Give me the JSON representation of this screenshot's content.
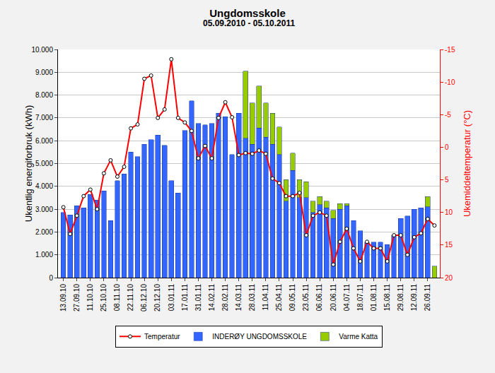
{
  "chart_data": {
    "type": "bar",
    "stacked": true,
    "title": "Ungdomsskole",
    "subtitle": "05.09.2010 - 05.10.2011",
    "y_label": "Ukentlig energiforbruk (kWh)",
    "y2_label": "Ukemiddeltemperatur (°C)",
    "grid": true,
    "legend": "bottom",
    "categories": [
      "13.09.10",
      null,
      "27.09.10",
      null,
      "11.10.10",
      null,
      "25.10.10",
      null,
      "08.11.10",
      null,
      "22.11.10",
      null,
      "06.12.10",
      null,
      "20.12.10",
      null,
      "03.01.11",
      null,
      "17.01.11",
      null,
      "31.01.11",
      null,
      "14.02.11",
      null,
      "28.02.11",
      null,
      "14.03.11",
      null,
      "28.03.11",
      null,
      "11.04.11",
      null,
      "25.04.11",
      null,
      "09.05.11",
      null,
      "23.05.11",
      null,
      "06.06.11",
      null,
      "20.06.11",
      null,
      "04.07.11",
      null,
      "18.07.11",
      null,
      "01.08.11",
      null,
      "15.08.11",
      null,
      "29.08.11",
      null,
      "12.09.11",
      null,
      "26.09.11",
      null
    ],
    "ylim": [
      0,
      10000
    ],
    "yticks": [
      0,
      {
        "value": 1000,
        "label": "1.000"
      },
      {
        "value": 2000,
        "label": "2.000"
      },
      {
        "value": 3000,
        "label": "3.000"
      },
      {
        "value": 4000,
        "label": "4.000"
      },
      {
        "value": 5000,
        "label": "5.000"
      },
      {
        "value": 6000,
        "label": "6.000"
      },
      {
        "value": 7000,
        "label": "7.000"
      },
      {
        "value": 8000,
        "label": "8.000"
      },
      {
        "value": 9000,
        "label": "9.000"
      },
      {
        "value": 10000,
        "label": "10.000"
      }
    ],
    "y2lim": [
      20,
      -15
    ],
    "y2ticks": [
      -15,
      -10,
      -5,
      0,
      5,
      10,
      15,
      20
    ],
    "series": [
      {
        "name": "INDERØY UNGDOMSSKOLE",
        "type": "bar",
        "color": "#3366ff",
        "values": [
          2850,
          2750,
          3150,
          3050,
          3650,
          3400,
          3800,
          2500,
          4250,
          4550,
          5500,
          5300,
          5850,
          6050,
          6250,
          5800,
          4250,
          3700,
          6450,
          7750,
          6750,
          6700,
          6750,
          7200,
          7050,
          5400,
          7200,
          6100,
          5850,
          6550,
          6150,
          5850,
          5400,
          3350,
          4700,
          3500,
          3500,
          2850,
          3200,
          3050,
          2600,
          3000,
          3150,
          2500,
          2050,
          1550,
          1550,
          1550,
          1450,
          1850,
          2600,
          2700,
          3000,
          3050,
          3100,
          null
        ]
      },
      {
        "name": "Varme Katta",
        "type": "bar",
        "color": "#99cc00",
        "values": [
          null,
          null,
          null,
          null,
          null,
          null,
          null,
          null,
          null,
          null,
          null,
          null,
          null,
          null,
          null,
          null,
          null,
          null,
          null,
          null,
          null,
          null,
          null,
          null,
          null,
          null,
          null,
          2950,
          1800,
          1850,
          1500,
          1350,
          1200,
          950,
          750,
          800,
          700,
          500,
          350,
          300,
          350,
          250,
          100,
          null,
          null,
          null,
          null,
          null,
          null,
          null,
          null,
          null,
          null,
          null,
          450,
          500
        ]
      },
      {
        "name": "Temperatur",
        "type": "line",
        "axis": "y2",
        "color": "#ff0000",
        "marker": "circle",
        "values": [
          9.2,
          13.3,
          10.5,
          7.5,
          6.5,
          9.5,
          4.0,
          2.0,
          4.5,
          3.0,
          -2.9,
          -3.5,
          -10.5,
          -11.0,
          -4.5,
          -5.8,
          -13.5,
          -4.5,
          -3.8,
          -2.5,
          1.7,
          -0.2,
          1.7,
          -4.5,
          -6.9,
          -4.6,
          1.2,
          0.9,
          1.0,
          0.5,
          1.0,
          4.8,
          5.5,
          7.5,
          7.5,
          7.0,
          13.5,
          10.5,
          10.0,
          10.5,
          18.0,
          14.5,
          12.5,
          15.5,
          17.5,
          14.5,
          15.5,
          15.5,
          17.5,
          13.5,
          13.5,
          16.5,
          13.8,
          13.2,
          11.0,
          12.0
        ]
      }
    ]
  }
}
